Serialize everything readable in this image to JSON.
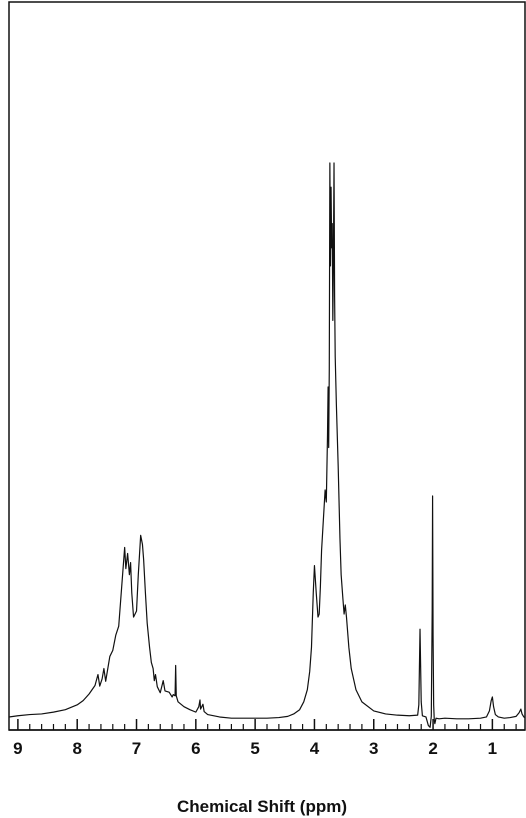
{
  "chart_data": {
    "type": "line",
    "title": "",
    "xlabel": "Chemical Shift (ppm)",
    "ylabel": "",
    "xlim": [
      9.15,
      0.45
    ],
    "ylim": [
      0,
      100
    ],
    "x_reversed": true,
    "grid": false,
    "legend": "none",
    "line_color": "#111111",
    "ticks": [
      {
        "value": 9,
        "label": "9"
      },
      {
        "value": 8,
        "label": "8"
      },
      {
        "value": 7,
        "label": "7"
      },
      {
        "value": 6,
        "label": "6"
      },
      {
        "value": 5,
        "label": "5"
      },
      {
        "value": 4,
        "label": "4"
      },
      {
        "value": 3,
        "label": "3"
      },
      {
        "value": 2,
        "label": "2"
      },
      {
        "value": 1,
        "label": "1"
      }
    ],
    "minor_tick_step": 0.2,
    "series": [
      {
        "points": [
          [
            9.15,
            0.5
          ],
          [
            9.0,
            0.7
          ],
          [
            8.8,
            0.9
          ],
          [
            8.6,
            1.0
          ],
          [
            8.4,
            1.3
          ],
          [
            8.2,
            1.7
          ],
          [
            8.0,
            2.5
          ],
          [
            7.9,
            3.2
          ],
          [
            7.8,
            4.3
          ],
          [
            7.7,
            5.7
          ],
          [
            7.65,
            7.5
          ],
          [
            7.62,
            5.6
          ],
          [
            7.58,
            6.8
          ],
          [
            7.55,
            8.5
          ],
          [
            7.52,
            6.4
          ],
          [
            7.45,
            10.5
          ],
          [
            7.4,
            11.5
          ],
          [
            7.35,
            14.0
          ],
          [
            7.3,
            15.5
          ],
          [
            7.25,
            22.0
          ],
          [
            7.2,
            28.5
          ],
          [
            7.18,
            25.0
          ],
          [
            7.15,
            27.5
          ],
          [
            7.12,
            24.0
          ],
          [
            7.1,
            26.0
          ],
          [
            7.08,
            21.0
          ],
          [
            7.05,
            17.0
          ],
          [
            7.0,
            18.0
          ],
          [
            6.97,
            24.0
          ],
          [
            6.93,
            30.5
          ],
          [
            6.9,
            29.0
          ],
          [
            6.88,
            26.5
          ],
          [
            6.85,
            21.0
          ],
          [
            6.82,
            16.0
          ],
          [
            6.78,
            12.0
          ],
          [
            6.75,
            9.5
          ],
          [
            6.72,
            8.5
          ],
          [
            6.7,
            6.5
          ],
          [
            6.68,
            7.5
          ],
          [
            6.65,
            5.5
          ],
          [
            6.6,
            4.5
          ],
          [
            6.55,
            6.5
          ],
          [
            6.52,
            4.8
          ],
          [
            6.45,
            4.6
          ],
          [
            6.4,
            3.8
          ],
          [
            6.38,
            4.2
          ],
          [
            6.35,
            4.0
          ],
          [
            6.34,
            9.0
          ],
          [
            6.33,
            4.0
          ],
          [
            6.3,
            3.0
          ],
          [
            6.2,
            2.2
          ],
          [
            6.1,
            1.7
          ],
          [
            6.0,
            1.3
          ],
          [
            5.95,
            2.2
          ],
          [
            5.93,
            3.3
          ],
          [
            5.92,
            1.8
          ],
          [
            5.88,
            2.6
          ],
          [
            5.86,
            1.4
          ],
          [
            5.8,
            0.9
          ],
          [
            5.6,
            0.5
          ],
          [
            5.4,
            0.3
          ],
          [
            5.2,
            0.3
          ],
          [
            5.0,
            0.3
          ],
          [
            4.8,
            0.3
          ],
          [
            4.6,
            0.4
          ],
          [
            4.45,
            0.6
          ],
          [
            4.35,
            1.0
          ],
          [
            4.25,
            1.7
          ],
          [
            4.18,
            3.0
          ],
          [
            4.12,
            5.0
          ],
          [
            4.08,
            8.0
          ],
          [
            4.05,
            12.0
          ],
          [
            4.02,
            21.0
          ],
          [
            4.0,
            25.5
          ],
          [
            3.97,
            21.0
          ],
          [
            3.94,
            17.0
          ],
          [
            3.92,
            17.5
          ],
          [
            3.9,
            22.0
          ],
          [
            3.88,
            28.0
          ],
          [
            3.85,
            33.0
          ],
          [
            3.82,
            38.0
          ],
          [
            3.8,
            36.0
          ],
          [
            3.78,
            47.0
          ],
          [
            3.77,
            55.0
          ],
          [
            3.76,
            45.0
          ],
          [
            3.75,
            58.0
          ],
          [
            3.74,
            92.0
          ],
          [
            3.73,
            75.0
          ],
          [
            3.72,
            88.0
          ],
          [
            3.71,
            78.0
          ],
          [
            3.7,
            82.0
          ],
          [
            3.69,
            66.0
          ],
          [
            3.68,
            76.0
          ],
          [
            3.67,
            92.0
          ],
          [
            3.66,
            70.0
          ],
          [
            3.65,
            60.0
          ],
          [
            3.63,
            52.0
          ],
          [
            3.6,
            42.0
          ],
          [
            3.57,
            30.0
          ],
          [
            3.55,
            24.0
          ],
          [
            3.52,
            20.0
          ],
          [
            3.5,
            17.5
          ],
          [
            3.48,
            19.0
          ],
          [
            3.46,
            17.0
          ],
          [
            3.42,
            12.0
          ],
          [
            3.38,
            8.5
          ],
          [
            3.3,
            5.0
          ],
          [
            3.2,
            3.0
          ],
          [
            3.0,
            1.5
          ],
          [
            2.8,
            1.0
          ],
          [
            2.6,
            0.8
          ],
          [
            2.4,
            0.7
          ],
          [
            2.26,
            0.8
          ],
          [
            2.24,
            2.5
          ],
          [
            2.22,
            15.0
          ],
          [
            2.2,
            3.0
          ],
          [
            2.18,
            0.7
          ],
          [
            2.12,
            0.5
          ],
          [
            2.1,
            -0.2
          ],
          [
            2.08,
            -0.9
          ],
          [
            2.05,
            -1.2
          ],
          [
            2.03,
            0.6
          ],
          [
            2.015,
            18.0
          ],
          [
            2.008,
            37.0
          ],
          [
            2.0,
            14.0
          ],
          [
            1.99,
            2.5
          ],
          [
            1.98,
            0.0
          ],
          [
            1.97,
            -0.6
          ],
          [
            1.95,
            0.3
          ],
          [
            1.9,
            0.2
          ],
          [
            1.8,
            0.3
          ],
          [
            1.6,
            0.2
          ],
          [
            1.4,
            0.2
          ],
          [
            1.2,
            0.3
          ],
          [
            1.1,
            0.5
          ],
          [
            1.05,
            1.5
          ],
          [
            1.02,
            3.2
          ],
          [
            1.0,
            3.8
          ],
          [
            0.98,
            2.2
          ],
          [
            0.95,
            0.9
          ],
          [
            0.9,
            0.5
          ],
          [
            0.8,
            0.3
          ],
          [
            0.7,
            0.4
          ],
          [
            0.6,
            0.6
          ],
          [
            0.55,
            1.2
          ],
          [
            0.52,
            1.8
          ],
          [
            0.5,
            1.0
          ],
          [
            0.47,
            0.5
          ],
          [
            0.45,
            0.4
          ]
        ]
      }
    ]
  }
}
